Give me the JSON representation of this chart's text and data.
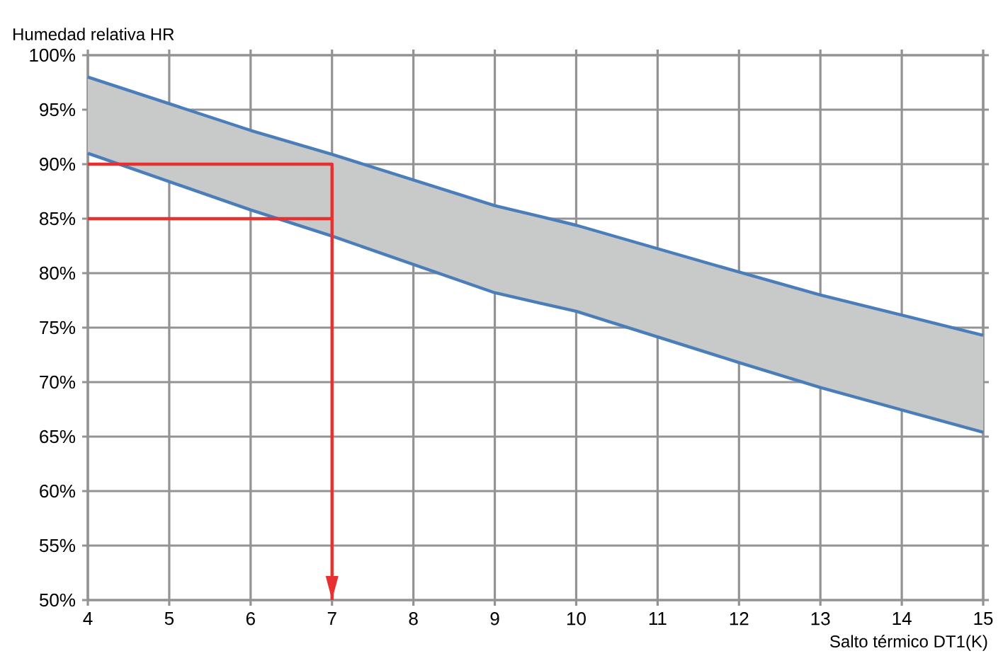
{
  "chart_data": {
    "type": "line",
    "xlabel": "Salto térmico DT1(K)",
    "ylabel": "Humedad relativa HR",
    "xlim": [
      4,
      15
    ],
    "ylim": [
      50,
      100
    ],
    "xticks": [
      4,
      5,
      6,
      7,
      8,
      9,
      10,
      11,
      12,
      13,
      14,
      15
    ],
    "yticks": [
      {
        "value": 50,
        "label": "50%"
      },
      {
        "value": 55,
        "label": "55%"
      },
      {
        "value": 60,
        "label": "60%"
      },
      {
        "value": 65,
        "label": "65%"
      },
      {
        "value": 70,
        "label": "70%"
      },
      {
        "value": 75,
        "label": "75%"
      },
      {
        "value": 80,
        "label": "80%"
      },
      {
        "value": 85,
        "label": "85%"
      },
      {
        "value": 90,
        "label": "90%"
      },
      {
        "value": 95,
        "label": "95%"
      },
      {
        "value": 100,
        "label": "100%"
      }
    ],
    "grid": true,
    "series": [
      {
        "color": "#4a7ebb",
        "x": [
          4,
          6,
          7,
          9,
          10,
          12,
          13,
          15
        ],
        "values": [
          98.0,
          93.1,
          90.9,
          86.2,
          84.4,
          80.1,
          78.0,
          74.3
        ],
        "lower": [
          91.0,
          85.8,
          83.4,
          78.2,
          76.5,
          71.8,
          69.5,
          65.4
        ],
        "upper": [
          98.0,
          93.1,
          90.9,
          86.2,
          84.4,
          80.1,
          78.0,
          74.3
        ]
      },
      {
        "color": "#4a7ebb",
        "x": [
          4,
          6,
          7,
          9,
          10,
          12,
          13,
          15
        ],
        "values": [
          91.0,
          85.8,
          83.4,
          78.2,
          76.5,
          71.8,
          69.5,
          65.4
        ]
      },
      {
        "color": "#e8312f",
        "x": [
          4,
          7,
          7
        ],
        "values": [
          90,
          90,
          50
        ]
      },
      {
        "color": "#e8312f",
        "x": [
          4,
          7
        ],
        "values": [
          85,
          85
        ]
      }
    ]
  }
}
